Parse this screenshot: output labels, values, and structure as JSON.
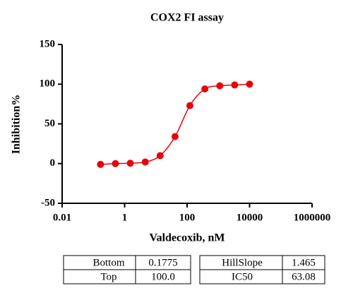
{
  "chart_data": {
    "type": "line",
    "title": "COX2 FI assay",
    "x_label": "Valdecoxib, nM",
    "y_label": "Inhibition%",
    "x_scale": "log",
    "x": [
      0.169,
      0.508,
      1.52,
      4.57,
      13.7,
      41.2,
      123,
      370,
      1111,
      3333,
      10000
    ],
    "series": [
      {
        "color": "#e8000b",
        "values": [
          -1,
          0,
          0.5,
          2,
          10,
          34,
          73,
          94,
          98,
          99,
          100
        ]
      }
    ],
    "xlim": [
      0.01,
      1000000
    ],
    "xticks": [
      0.01,
      1,
      100,
      10000,
      1000000
    ],
    "ylim": [
      -50,
      150
    ],
    "yticks": [
      -50,
      0,
      50,
      100,
      150
    ]
  },
  "table": {
    "rows": [
      [
        "Bottom",
        "0.1775",
        "HillSlope",
        "1.465"
      ],
      [
        "Top",
        "100.0",
        "IC50",
        "63.08"
      ]
    ]
  }
}
